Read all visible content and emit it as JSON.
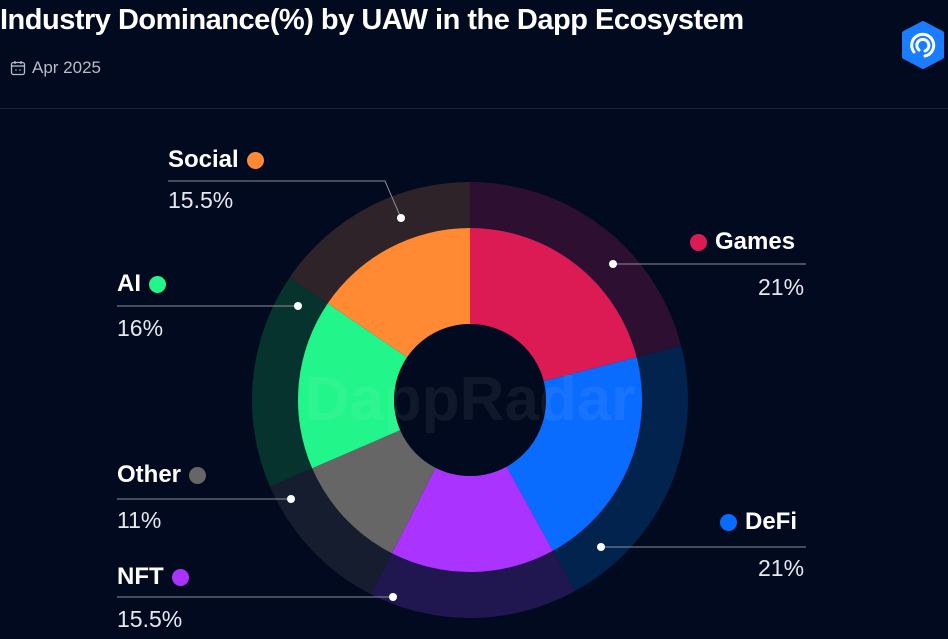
{
  "header": {
    "title": "Industry Dominance(%) by UAW in the Dapp Ecosystem",
    "date": "Apr 2025",
    "logo": "DappRadar",
    "watermark": "DappRadar"
  },
  "chart_data": {
    "type": "pie",
    "variant": "donut",
    "title": "Industry Dominance(%) by UAW in the Dapp Ecosystem",
    "slices": [
      {
        "label": "Games",
        "value": 21,
        "display": "21%",
        "color": "#dc1a54",
        "outer_color": "#2d0f31"
      },
      {
        "label": "DeFi",
        "value": 21,
        "display": "21%",
        "color": "#0a6cff",
        "outer_color": "#03234f"
      },
      {
        "label": "NFT",
        "value": 15.5,
        "display": "15.5%",
        "color": "#aa33ff",
        "outer_color": "#201650"
      },
      {
        "label": "Other",
        "value": 11,
        "display": "11%",
        "color": "#666666",
        "outer_color": "#161d2e"
      },
      {
        "label": "AI",
        "value": 16,
        "display": "16%",
        "color": "#22f58a",
        "outer_color": "#07332e"
      },
      {
        "label": "Social",
        "value": 15.5,
        "display": "15.5%",
        "color": "#ff8a33",
        "outer_color": "#2e2329"
      }
    ],
    "legend": "callout-labels"
  }
}
